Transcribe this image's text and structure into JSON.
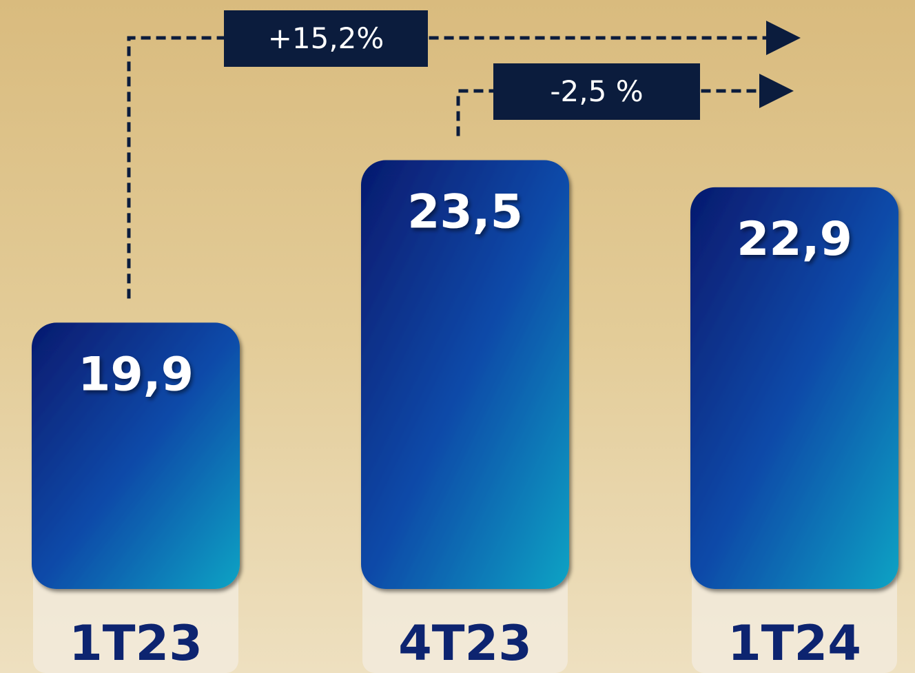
{
  "chart_data": {
    "type": "bar",
    "categories": [
      "1T23",
      "4T23",
      "1T24"
    ],
    "values": [
      19.9,
      23.5,
      22.9
    ],
    "value_labels": [
      "19,9",
      "23,5",
      "22,9"
    ],
    "ylim": [
      14,
      24.5
    ],
    "annotations": [
      "+15,2%",
      "-2,5 %"
    ]
  }
}
